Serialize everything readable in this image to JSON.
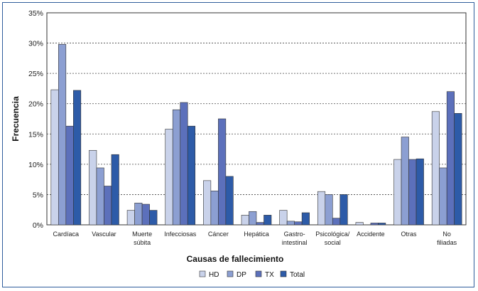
{
  "chart_data": {
    "type": "bar",
    "title": "",
    "xlabel": "Causas de fallecimiento",
    "ylabel": "Frecuencia",
    "ylim": [
      0,
      35
    ],
    "yticks": [
      "0%",
      "5%",
      "10%",
      "15%",
      "20%",
      "25%",
      "30%",
      "35%"
    ],
    "grid": "horizontal dashed",
    "legend_position": "bottom",
    "categories": [
      [
        "Cardíaca"
      ],
      [
        "Vascular"
      ],
      [
        "Muerte",
        "súbita"
      ],
      [
        "Infecciosas"
      ],
      [
        "Cáncer"
      ],
      [
        "Hepática"
      ],
      [
        "Gastro-",
        "intestinal"
      ],
      [
        "Psicológica/",
        "social"
      ],
      [
        "Accidente"
      ],
      [
        "Otras"
      ],
      [
        "No",
        "filiadas"
      ]
    ],
    "series": [
      {
        "name": "HD",
        "color": "#c9d2ea",
        "values": [
          22.3,
          12.3,
          2.4,
          15.8,
          7.3,
          1.6,
          2.4,
          5.5,
          0.4,
          10.8,
          18.7
        ]
      },
      {
        "name": "DP",
        "color": "#8c9fd2",
        "values": [
          29.8,
          9.4,
          3.6,
          19.0,
          5.6,
          2.2,
          0.6,
          5.0,
          0.0,
          14.5,
          9.4
        ]
      },
      {
        "name": "TX",
        "color": "#5c70bb",
        "values": [
          16.3,
          6.4,
          3.4,
          20.2,
          17.5,
          0.4,
          0.5,
          1.1,
          0.3,
          10.8,
          22.0
        ]
      },
      {
        "name": "Total",
        "color": "#2d5ba8",
        "values": [
          22.2,
          11.6,
          2.4,
          16.3,
          8.0,
          1.6,
          2.0,
          5.0,
          0.3,
          10.9,
          18.4
        ]
      }
    ]
  }
}
